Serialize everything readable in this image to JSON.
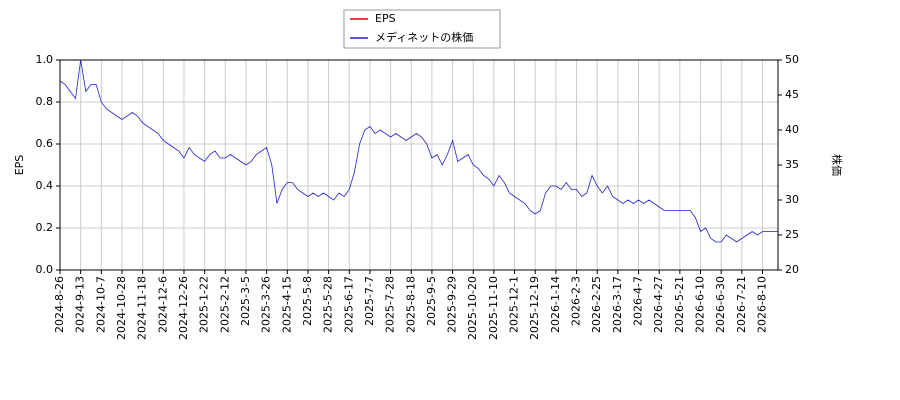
{
  "chart_data": {
    "type": "line",
    "ylabel": "EPS",
    "y2label": "株価",
    "categories": [
      "2024-8-26",
      null,
      null,
      null,
      "2024-9-13",
      null,
      null,
      null,
      "2024-10-7",
      null,
      null,
      null,
      "2024-10-28",
      null,
      null,
      null,
      "2024-11-18",
      null,
      null,
      null,
      "2024-12-6",
      null,
      null,
      null,
      "2024-12-26",
      null,
      null,
      null,
      "2025-1-22",
      null,
      null,
      null,
      "2025-2-12",
      null,
      null,
      null,
      "2025-3-5",
      null,
      null,
      null,
      "2025-3-26",
      null,
      null,
      null,
      "2025-4-15",
      null,
      null,
      null,
      "2025-5-8",
      null,
      null,
      null,
      "2025-5-28",
      null,
      null,
      null,
      "2025-6-17",
      null,
      null,
      null,
      "2025-7-7",
      null,
      null,
      null,
      "2025-7-28",
      null,
      null,
      null,
      "2025-8-18",
      null,
      null,
      null,
      "2025-9-5",
      null,
      null,
      null,
      "2025-9-29",
      null,
      null,
      null,
      "2025-10-20",
      null,
      null,
      null,
      "2025-11-10",
      null,
      null,
      null,
      "2025-12-1",
      null,
      null,
      null,
      "2025-12-19",
      null,
      null,
      null,
      "2026-1-14",
      null,
      null,
      null,
      "2026-2-3",
      null,
      null,
      null,
      "2026-2-25",
      null,
      null,
      null,
      "2026-3-17",
      null,
      null,
      null,
      "2026-4-7",
      null,
      null,
      null,
      "2026-4-27",
      null,
      null,
      null,
      "2026-5-21",
      null,
      null,
      null,
      "2026-6-10",
      null,
      null,
      null,
      "2026-6-30",
      null,
      null,
      null,
      "2026-7-21",
      null,
      null,
      null,
      "2026-8-10",
      null,
      null,
      null
    ],
    "series": [
      {
        "name": "EPS",
        "color": "#dd0000",
        "axis": "y",
        "values": [
          null,
          null,
          null,
          null,
          null,
          null,
          null,
          null,
          null,
          null,
          null,
          null,
          null,
          null,
          null,
          null,
          null,
          null,
          null,
          null,
          null,
          null,
          null,
          null,
          null,
          null,
          null,
          null,
          null,
          null,
          null,
          null,
          null,
          null,
          null,
          null,
          null,
          null,
          null,
          null,
          null,
          null,
          null,
          null,
          null,
          null,
          null,
          null,
          null,
          null,
          null,
          null,
          null,
          null,
          null,
          null,
          null,
          null,
          null,
          null,
          null,
          null,
          null,
          null,
          null,
          null,
          null,
          null,
          null,
          null,
          null,
          null,
          null,
          null,
          null,
          null,
          null,
          null,
          null,
          null,
          null,
          null,
          null,
          null,
          null,
          null,
          null,
          null,
          null,
          null,
          null,
          null,
          null,
          null,
          null,
          null,
          null,
          null,
          null,
          null,
          null,
          null,
          null,
          null,
          null,
          null,
          null,
          null,
          null,
          null,
          null,
          null,
          null,
          null,
          null,
          null,
          null,
          null,
          null,
          null,
          null,
          null,
          null,
          null,
          null,
          null,
          null,
          null,
          null,
          null,
          null,
          null,
          null,
          null,
          null,
          null,
          null,
          null,
          null,
          null
        ]
      },
      {
        "name": "メディネットの株価",
        "color": "#2222cc",
        "axis": "y2",
        "values": [
          47,
          46.5,
          45.5,
          44.5,
          50,
          45.5,
          46.5,
          46.5,
          44,
          43,
          42.5,
          42,
          41.5,
          42,
          42.5,
          42,
          41,
          40.5,
          40,
          39.5,
          38.5,
          38,
          37.5,
          37,
          36,
          37.5,
          36.5,
          36,
          35.5,
          36.5,
          37,
          36,
          36,
          36.5,
          36,
          35.5,
          35,
          35.5,
          36.5,
          37,
          37.5,
          35,
          29.5,
          31.5,
          32.5,
          32.5,
          31.5,
          31,
          30.5,
          31,
          30.5,
          31,
          30.5,
          30,
          31,
          30.5,
          31.5,
          34,
          38,
          40,
          40.5,
          39.5,
          40,
          39.5,
          39,
          39.5,
          39,
          38.5,
          39,
          39.5,
          39,
          38,
          36,
          36.5,
          35,
          36.5,
          38.5,
          35.5,
          36,
          36.5,
          35,
          34.5,
          33.5,
          33,
          32,
          33.5,
          32.5,
          31,
          30.5,
          30,
          29.5,
          28.5,
          28,
          28.5,
          31,
          32,
          32,
          31.5,
          32.5,
          31.5,
          31.5,
          30.5,
          31,
          33.5,
          32,
          31,
          32,
          30.5,
          30,
          29.5,
          30,
          29.5,
          30,
          29.5,
          30,
          29.5,
          29,
          28.5,
          28.5,
          28.5,
          28.5,
          28.5,
          28.5,
          27.5,
          25.5,
          26,
          24.5,
          24,
          24,
          25,
          24.5,
          24,
          24.5,
          25,
          25.5,
          25,
          25.5,
          25.5,
          25.5,
          25.5
        ]
      }
    ],
    "ylim": [
      0,
      1
    ],
    "yticks": [
      {
        "value": 0,
        "label": "0.0"
      },
      0.2,
      0.4,
      0.6,
      0.8,
      {
        "value": 1,
        "label": "1.0"
      }
    ],
    "y2lim": [
      20,
      50
    ],
    "y2ticks": [
      20,
      25,
      30,
      35,
      40,
      45,
      50
    ],
    "grid": true,
    "legend": "upper center"
  }
}
